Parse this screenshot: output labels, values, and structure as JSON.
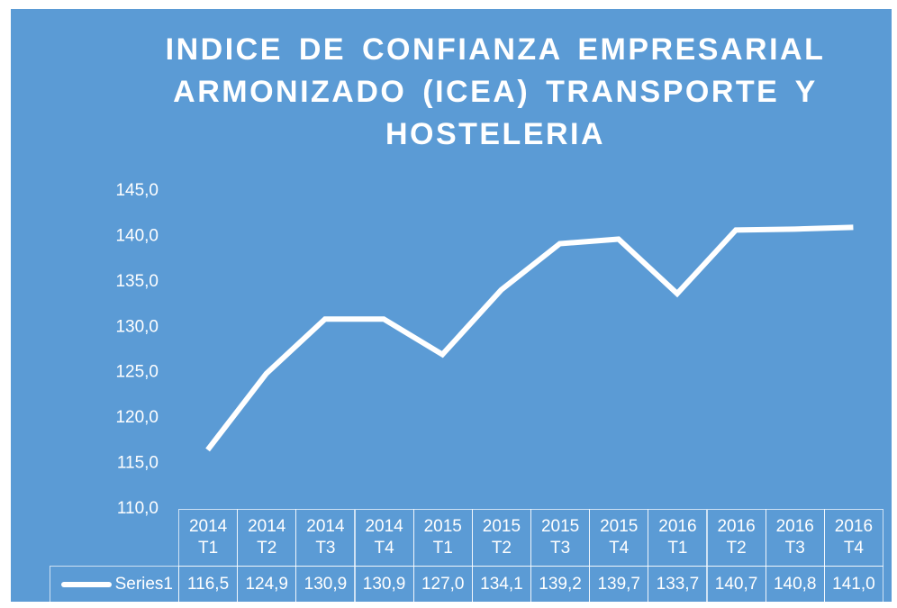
{
  "chart_data": {
    "type": "line",
    "title": "INDICE DE CONFIANZA EMPRESARIAL ARMONIZADO (ICEA) TRANSPORTE Y HOSTELERIA",
    "categories": [
      "2014 T1",
      "2014 T2",
      "2014 T3",
      "2014 T4",
      "2015 T1",
      "2015 T2",
      "2015 T3",
      "2015 T4",
      "2016 T1",
      "2016 T2",
      "2016 T3",
      "2016 T4"
    ],
    "series": [
      {
        "name": "Series1",
        "color": "#ffffff",
        "values": [
          116.5,
          124.9,
          130.9,
          130.9,
          127.0,
          134.1,
          139.2,
          139.7,
          133.7,
          140.7,
          140.8,
          141.0
        ],
        "value_labels": [
          "116,5",
          "124,9",
          "130,9",
          "130,9",
          "127,0",
          "134,1",
          "139,2",
          "139,7",
          "133,7",
          "140,7",
          "140,8",
          "141,0"
        ]
      }
    ],
    "ylim": [
      110,
      145
    ],
    "yticks": [
      {
        "value": 110,
        "label": "110,0"
      },
      {
        "value": 115,
        "label": "115,0"
      },
      {
        "value": 120,
        "label": "120,0"
      },
      {
        "value": 125,
        "label": "125,0"
      },
      {
        "value": 130,
        "label": "130,0"
      },
      {
        "value": 135,
        "label": "135,0"
      },
      {
        "value": 140,
        "label": "140,0"
      },
      {
        "value": 145,
        "label": "145,0"
      }
    ],
    "background": "#5b9bd5"
  }
}
